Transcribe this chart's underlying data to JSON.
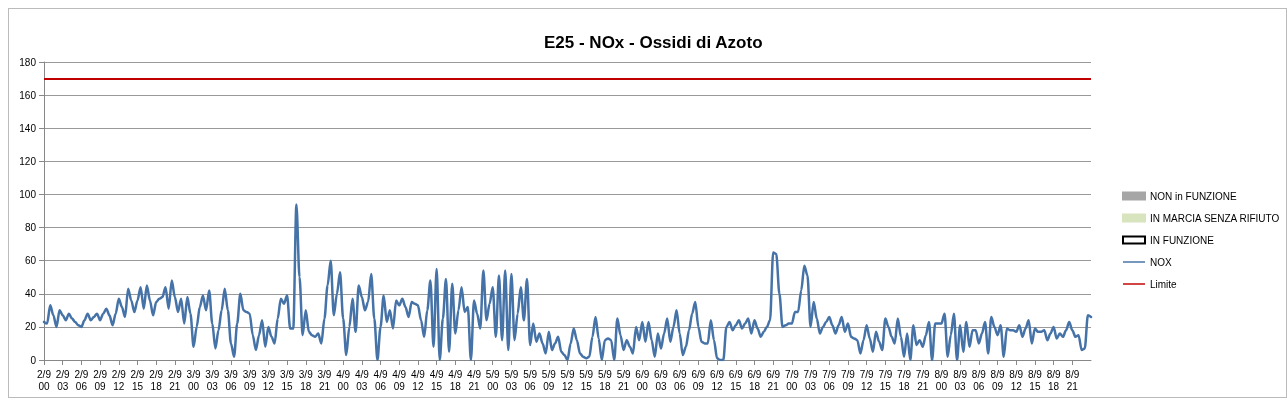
{
  "chart_data": {
    "type": "line",
    "title": "E25 - NOx - Ossidi di Azoto",
    "categories": [
      "2/9 00",
      null,
      null,
      null,
      null,
      null,
      "2/9 03",
      null,
      null,
      null,
      null,
      null,
      "2/9 06",
      null,
      null,
      null,
      null,
      null,
      "2/9 09",
      null,
      null,
      null,
      null,
      null,
      "2/9 12",
      null,
      null,
      null,
      null,
      null,
      "2/9 15",
      null,
      null,
      null,
      null,
      null,
      "2/9 18",
      null,
      null,
      null,
      null,
      null,
      "2/9 21",
      null,
      null,
      null,
      null,
      null,
      "3/9 00",
      null,
      null,
      null,
      null,
      null,
      "3/9 03",
      null,
      null,
      null,
      null,
      null,
      "3/9 06",
      null,
      null,
      null,
      null,
      null,
      "3/9 09",
      null,
      null,
      null,
      null,
      null,
      "3/9 12",
      null,
      null,
      null,
      null,
      null,
      "3/9 15",
      null,
      null,
      null,
      null,
      null,
      "3/9 18",
      null,
      null,
      null,
      null,
      null,
      "3/9 21",
      null,
      null,
      null,
      null,
      null,
      "4/9 00",
      null,
      null,
      null,
      null,
      null,
      "4/9 03",
      null,
      null,
      null,
      null,
      null,
      "4/9 06",
      null,
      null,
      null,
      null,
      null,
      "4/9 09",
      null,
      null,
      null,
      null,
      null,
      "4/9 12",
      null,
      null,
      null,
      null,
      null,
      "4/9 15",
      null,
      null,
      null,
      null,
      null,
      "4/9 18",
      null,
      null,
      null,
      null,
      null,
      "4/9 21",
      null,
      null,
      null,
      null,
      null,
      "5/9 00",
      null,
      null,
      null,
      null,
      null,
      "5/9 03",
      null,
      null,
      null,
      null,
      null,
      "5/9 06",
      null,
      null,
      null,
      null,
      null,
      "5/9 09",
      null,
      null,
      null,
      null,
      null,
      "5/9 12",
      null,
      null,
      null,
      null,
      null,
      "5/9 15",
      null,
      null,
      null,
      null,
      null,
      "5/9 18",
      null,
      null,
      null,
      null,
      null,
      "5/9 21",
      null,
      null,
      null,
      null,
      null,
      "6/9 00",
      null,
      null,
      null,
      null,
      null,
      "6/9 03",
      null,
      null,
      null,
      null,
      null,
      "6/9 06",
      null,
      null,
      null,
      null,
      null,
      "6/9 09",
      null,
      null,
      null,
      null,
      null,
      "6/9 12",
      null,
      null,
      null,
      null,
      null,
      "6/9 15",
      null,
      null,
      null,
      null,
      null,
      "6/9 18",
      null,
      null,
      null,
      null,
      null,
      "6/9 21",
      null,
      null,
      null,
      null,
      null,
      "7/9 00",
      null,
      null,
      null,
      null,
      null,
      "7/9 03",
      null,
      null,
      null,
      null,
      null,
      "7/9 06",
      null,
      null,
      null,
      null,
      null,
      "7/9 09",
      null,
      null,
      null,
      null,
      null,
      "7/9 12",
      null,
      null,
      null,
      null,
      null,
      "7/9 15",
      null,
      null,
      null,
      null,
      null,
      "7/9 18",
      null,
      null,
      null,
      null,
      null,
      "7/9 21",
      null,
      null,
      null,
      null,
      null,
      "8/9 00",
      null,
      null,
      null,
      null,
      null,
      "8/9 03",
      null,
      null,
      null,
      null,
      null,
      "8/9 06",
      null,
      null,
      null,
      null,
      null,
      "8/9 09",
      null,
      null,
      null,
      null,
      null,
      "8/9 12",
      null,
      null,
      null,
      null,
      null,
      "8/9 15",
      null,
      null,
      null,
      null,
      null,
      "8/9 18",
      null,
      null,
      null,
      null,
      null,
      "8/9 21",
      null,
      null,
      null,
      null,
      null,
      null
    ],
    "ylim": [
      0,
      180
    ],
    "yticks": [
      0,
      20,
      40,
      60,
      80,
      100,
      120,
      140,
      160,
      180
    ],
    "grid": "y",
    "legend": "right",
    "marker": "none",
    "line_style": "solid",
    "ref_lines": [
      {
        "axis": "y",
        "value": 170,
        "label": "Limite",
        "color": "#c00000"
      }
    ],
    "series": [
      {
        "name": "NON in FUNZIONE",
        "type": "bar",
        "color": "#a6a6a6",
        "values": [
          null,
          null,
          null,
          null,
          null,
          null,
          null,
          null,
          null,
          null,
          null,
          null,
          null,
          null,
          null,
          null,
          null,
          null,
          null,
          null,
          null,
          null,
          null,
          null,
          null,
          null,
          null,
          null,
          null,
          null,
          null,
          null,
          null,
          null,
          null,
          null,
          null,
          null,
          null,
          null,
          null,
          null,
          null,
          null,
          null,
          null,
          null,
          null,
          null,
          null,
          null,
          null,
          null,
          null,
          null,
          null,
          null,
          null,
          null,
          null,
          null,
          null,
          null,
          null,
          null,
          null,
          null,
          null,
          null,
          null,
          null,
          null,
          null,
          null,
          null,
          null,
          null,
          null,
          null,
          null,
          null,
          null,
          null,
          null,
          null,
          null,
          null,
          null,
          null,
          null,
          null,
          null,
          null,
          null,
          null,
          null,
          null,
          null,
          null,
          null,
          null,
          null,
          null,
          null,
          null,
          null,
          null,
          null,
          null,
          null,
          null,
          null,
          null,
          null,
          null,
          null,
          null,
          null,
          null,
          null,
          null,
          null,
          null,
          null,
          null,
          null,
          null,
          null,
          null,
          null,
          null,
          null,
          null,
          null,
          null,
          null,
          null,
          null,
          null,
          null,
          null,
          null,
          null,
          null,
          null,
          null,
          null,
          null,
          null,
          null,
          null,
          null,
          null,
          null,
          null,
          null,
          null,
          null,
          null,
          null,
          null,
          null,
          null,
          null,
          null,
          null,
          null,
          null,
          null,
          null,
          null,
          null,
          null,
          null,
          null,
          null,
          null,
          null,
          null,
          null,
          null,
          null,
          null,
          null,
          null,
          null,
          null,
          null,
          null,
          null,
          null,
          null,
          null,
          null,
          null,
          null,
          null,
          null,
          null,
          null,
          null,
          null,
          null,
          null,
          null,
          null,
          null,
          null,
          null,
          null,
          null,
          null,
          null,
          null,
          null,
          null,
          null,
          null,
          null,
          null,
          null,
          null,
          null,
          null,
          null,
          null,
          null,
          null,
          null,
          null,
          null,
          null,
          null,
          null,
          null,
          null,
          null,
          null,
          null,
          null,
          null,
          null,
          null,
          null,
          null,
          null,
          null,
          null,
          null,
          null,
          null,
          null,
          null,
          null,
          null,
          null,
          null,
          null,
          null,
          null,
          null,
          null,
          null,
          null,
          null,
          null,
          null,
          null,
          null,
          null,
          null,
          null,
          null,
          null,
          null,
          null,
          null,
          null,
          null,
          null,
          null,
          null,
          null,
          null,
          null,
          null,
          null,
          null,
          null,
          null,
          null,
          null,
          null,
          null,
          null,
          null,
          null,
          null,
          null,
          null,
          null,
          null,
          null,
          null,
          null,
          null,
          null,
          null,
          null,
          null,
          null,
          null,
          null,
          null,
          null,
          null,
          null,
          null,
          null,
          null,
          null,
          null,
          null,
          null,
          null,
          null,
          null,
          null,
          null,
          null,
          null,
          null,
          null,
          null,
          null,
          null,
          null
        ]
      },
      {
        "name": "IN MARCIA SENZA RIFIUTO",
        "type": "bar",
        "color": "#d7e4bd",
        "values": [
          null,
          null,
          null,
          null,
          null,
          null,
          null,
          null,
          null,
          null,
          null,
          null,
          null,
          null,
          null,
          null,
          null,
          null,
          null,
          null,
          null,
          null,
          null,
          null,
          null,
          null,
          null,
          null,
          null,
          null,
          null,
          null,
          null,
          null,
          null,
          null,
          null,
          null,
          null,
          null,
          null,
          null,
          null,
          null,
          null,
          null,
          null,
          null,
          null,
          null,
          null,
          null,
          null,
          null,
          null,
          null,
          null,
          null,
          null,
          null,
          null,
          null,
          null,
          null,
          null,
          null,
          null,
          null,
          null,
          null,
          null,
          null,
          null,
          null,
          null,
          null,
          null,
          null,
          null,
          null,
          null,
          null,
          null,
          null,
          null,
          null,
          null,
          null,
          null,
          null,
          null,
          null,
          null,
          null,
          null,
          null,
          null,
          null,
          null,
          null,
          null,
          null,
          null,
          null,
          null,
          null,
          null,
          null,
          null,
          null,
          null,
          null,
          null,
          null,
          null,
          null,
          null,
          null,
          null,
          null,
          null,
          null,
          null,
          null,
          null,
          null,
          null,
          null,
          null,
          null,
          null,
          null,
          null,
          null,
          null,
          null,
          null,
          null,
          null,
          null,
          null,
          null,
          null,
          null,
          null,
          null,
          null,
          null,
          null,
          null,
          null,
          null,
          null,
          null,
          null,
          null,
          null,
          null,
          null,
          null,
          null,
          null,
          null,
          null,
          null,
          null,
          null,
          null,
          null,
          null,
          null,
          null,
          null,
          null,
          null,
          null,
          null,
          null,
          null,
          null,
          null,
          null,
          null,
          null,
          null,
          null,
          null,
          null,
          null,
          null,
          null,
          null,
          null,
          null,
          null,
          null,
          null,
          null,
          null,
          null,
          null,
          null,
          null,
          null,
          null,
          null,
          null,
          null,
          null,
          null,
          null,
          null,
          null,
          null,
          null,
          null,
          null,
          null,
          null,
          null,
          null,
          null,
          null,
          null,
          null,
          null,
          null,
          null,
          null,
          null,
          null,
          null,
          null,
          null,
          null,
          null,
          null,
          null,
          null,
          null,
          null,
          null,
          null,
          null,
          null,
          null,
          null,
          null,
          null,
          null,
          null,
          null,
          null,
          null,
          null,
          null,
          null,
          null,
          null,
          null,
          null,
          null,
          null,
          null,
          null,
          null,
          null,
          null,
          null,
          null,
          null,
          null,
          null,
          null,
          null,
          null,
          null,
          null,
          null,
          null,
          null,
          null,
          null,
          null,
          null,
          null,
          null,
          null,
          null,
          null,
          null,
          null,
          null,
          null,
          null,
          null,
          null,
          null,
          null,
          null,
          null,
          null,
          null,
          null,
          null,
          null,
          null,
          null,
          null,
          null,
          null,
          null,
          null,
          null,
          null,
          null,
          null,
          null,
          null,
          null,
          null,
          null,
          null,
          null,
          null,
          null,
          null,
          null,
          null,
          null,
          null,
          null,
          null,
          null,
          null,
          null,
          null
        ]
      },
      {
        "name": "IN FUNZIONE",
        "type": "bar",
        "color": "#ffffff",
        "values": [
          null,
          null,
          null,
          null,
          null,
          null,
          null,
          null,
          null,
          null,
          null,
          null,
          null,
          null,
          null,
          null,
          null,
          null,
          null,
          null,
          null,
          null,
          null,
          null,
          null,
          null,
          null,
          null,
          null,
          null,
          null,
          null,
          null,
          null,
          null,
          null,
          null,
          null,
          null,
          null,
          null,
          null,
          null,
          null,
          null,
          null,
          null,
          null,
          null,
          null,
          null,
          null,
          null,
          null,
          null,
          null,
          null,
          null,
          null,
          null,
          null,
          null,
          null,
          null,
          null,
          null,
          null,
          null,
          null,
          null,
          null,
          null,
          null,
          null,
          null,
          null,
          null,
          null,
          null,
          null,
          null,
          null,
          null,
          null,
          null,
          null,
          null,
          null,
          null,
          null,
          null,
          null,
          null,
          null,
          null,
          null,
          null,
          null,
          null,
          null,
          null,
          null,
          null,
          null,
          null,
          null,
          null,
          null,
          null,
          null,
          null,
          null,
          null,
          null,
          null,
          null,
          null,
          null,
          null,
          null,
          null,
          null,
          null,
          null,
          null,
          null,
          null,
          null,
          null,
          null,
          null,
          null,
          null,
          null,
          null,
          null,
          null,
          null,
          null,
          null,
          null,
          null,
          null,
          null,
          null,
          null,
          null,
          null,
          null,
          null,
          null,
          null,
          null,
          null,
          null,
          null,
          null,
          null,
          null,
          null,
          null,
          null,
          null,
          null,
          null,
          null,
          null,
          null,
          null,
          null,
          null,
          null,
          null,
          null,
          null,
          null,
          null,
          null,
          null,
          null,
          null,
          null,
          null,
          null,
          null,
          null,
          null,
          null,
          null,
          null,
          null,
          null,
          null,
          null,
          null,
          null,
          null,
          null,
          null,
          null,
          null,
          null,
          null,
          null,
          null,
          null,
          null,
          null,
          null,
          null,
          null,
          null,
          null,
          null,
          null,
          null,
          null,
          null,
          null,
          null,
          null,
          null,
          null,
          null,
          null,
          null,
          null,
          null,
          null,
          null,
          null,
          null,
          null,
          null,
          null,
          null,
          null,
          null,
          null,
          null,
          null,
          null,
          null,
          null,
          null,
          null,
          null,
          null,
          null,
          null,
          null,
          null,
          null,
          null,
          null,
          null,
          null,
          null,
          null,
          null,
          null,
          null,
          null,
          null,
          null,
          null,
          null,
          null,
          null,
          null,
          null,
          null,
          null,
          null,
          null,
          null,
          null,
          null,
          null,
          null,
          null,
          null,
          null,
          null,
          null,
          null,
          null,
          null,
          null,
          null,
          null,
          null,
          null,
          null,
          null,
          null,
          null,
          null,
          null,
          null,
          null,
          null,
          null,
          null,
          null,
          null,
          null,
          null,
          null,
          null,
          null,
          null,
          null,
          null,
          null,
          null,
          null,
          null,
          null,
          null,
          null,
          null,
          null,
          null,
          null,
          null,
          null,
          null,
          null,
          null,
          null,
          null,
          null,
          null,
          null,
          null,
          null
        ]
      },
      {
        "name": "NOX",
        "color": "#4572a7",
        "values": [
          23,
          22,
          33,
          27,
          20,
          30,
          27,
          24,
          28,
          25,
          23,
          21,
          20,
          24,
          28,
          24,
          26,
          28,
          24,
          28,
          31,
          27,
          21,
          28,
          37,
          32,
          26,
          43,
          36,
          29,
          36,
          44,
          31,
          45,
          36,
          27,
          35,
          37,
          38,
          44,
          31,
          48,
          38,
          29,
          37,
          22,
          38,
          28,
          8,
          20,
          32,
          39,
          30,
          42,
          22,
          7,
          18,
          30,
          43,
          30,
          10,
          2,
          22,
          40,
          30,
          29,
          28,
          15,
          6,
          15,
          24,
          8,
          20,
          14,
          10,
          25,
          37,
          34,
          39,
          19,
          19,
          94,
          50,
          15,
          30,
          17,
          15,
          14,
          16,
          10,
          25,
          45,
          60,
          27,
          40,
          53,
          25,
          3,
          20,
          37,
          17,
          45,
          38,
          30,
          35,
          52,
          25,
          0,
          20,
          39,
          23,
          30,
          19,
          36,
          33,
          37,
          32,
          26,
          35,
          34,
          33,
          24,
          14,
          30,
          48,
          8,
          55,
          0,
          25,
          49,
          5,
          46,
          16,
          30,
          44,
          29,
          32,
          0,
          36,
          28,
          19,
          54,
          24,
          34,
          44,
          14,
          51,
          12,
          54,
          6,
          52,
          12,
          28,
          44,
          24,
          49,
          9,
          22,
          11,
          16,
          10,
          4,
          17,
          6,
          10,
          14,
          5,
          3,
          0,
          10,
          19,
          12,
          4,
          2,
          1,
          2,
          14,
          26,
          13,
          0,
          12,
          13,
          12,
          0,
          25,
          15,
          6,
          12,
          8,
          4,
          20,
          12,
          23,
          11,
          23,
          12,
          2,
          16,
          7,
          16,
          25,
          11,
          20,
          30,
          16,
          3,
          8,
          18,
          28,
          35,
          20,
          11,
          10,
          10,
          24,
          12,
          1,
          0,
          0,
          20,
          23,
          18,
          21,
          24,
          19,
          22,
          25,
          16,
          24,
          19,
          14,
          17,
          20,
          24,
          65,
          64,
          40,
          20,
          21,
          22,
          22,
          29,
          29,
          42,
          57,
          51,
          20,
          35,
          25,
          16,
          20,
          23,
          26,
          21,
          16,
          21,
          26,
          17,
          22,
          14,
          13,
          12,
          4,
          12,
          21,
          13,
          5,
          17,
          11,
          6,
          25,
          20,
          14,
          10,
          25,
          14,
          2,
          16,
          0,
          21,
          9,
          12,
          8,
          15,
          23,
          0,
          22,
          22,
          22,
          28,
          2,
          15,
          28,
          0,
          21,
          5,
          23,
          8,
          18,
          18,
          10,
          16,
          23,
          4,
          26,
          20,
          15,
          21,
          2,
          19,
          18,
          18,
          17,
          21,
          14,
          19,
          24,
          10,
          19,
          17,
          17,
          18,
          12,
          16,
          20,
          13,
          16,
          14,
          18,
          23,
          18,
          14,
          15,
          6,
          7,
          27,
          26
        ]
      }
    ]
  }
}
